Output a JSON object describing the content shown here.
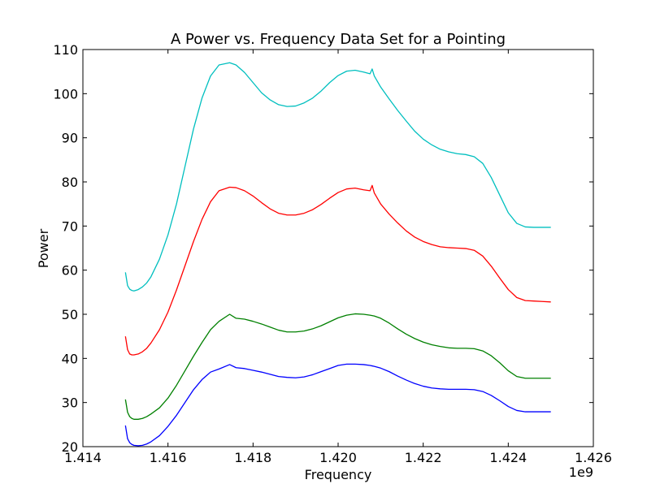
{
  "chart_data": {
    "type": "line",
    "title": "A Power vs. Frequency Data Set for a Pointing",
    "xlabel": "Frequency",
    "ylabel": "Power",
    "x_offset_label": "1e9",
    "xlim": [
      1.414,
      1.426
    ],
    "ylim": [
      20,
      110
    ],
    "xticks": [
      1.414,
      1.416,
      1.418,
      1.42,
      1.422,
      1.424,
      1.426
    ],
    "xtick_labels": [
      "1.414",
      "1.416",
      "1.418",
      "1.420",
      "1.422",
      "1.424",
      "1.426"
    ],
    "yticks": [
      20,
      30,
      40,
      50,
      60,
      70,
      80,
      90,
      100,
      110
    ],
    "ytick_labels": [
      "20",
      "30",
      "40",
      "50",
      "60",
      "70",
      "80",
      "90",
      "100",
      "110"
    ],
    "grid": false,
    "legend": "none",
    "x": [
      1.415,
      1.41505,
      1.4151,
      1.41515,
      1.4152,
      1.4153,
      1.4154,
      1.4155,
      1.4156,
      1.4158,
      1.416,
      1.4162,
      1.4164,
      1.4166,
      1.4168,
      1.417,
      1.4172,
      1.41745,
      1.4176,
      1.4178,
      1.418,
      1.4182,
      1.4184,
      1.4186,
      1.4188,
      1.419,
      1.4192,
      1.4194,
      1.4196,
      1.4198,
      1.42,
      1.4202,
      1.4204,
      1.4206,
      1.42075,
      1.4208,
      1.42085,
      1.421,
      1.4212,
      1.4214,
      1.4216,
      1.4218,
      1.422,
      1.4222,
      1.4224,
      1.4226,
      1.4228,
      1.423,
      1.4232,
      1.4234,
      1.4236,
      1.4238,
      1.424,
      1.4242,
      1.4244,
      1.4246,
      1.4248,
      1.425
    ],
    "series": [
      {
        "color": "#0000ff",
        "values": [
          24.8,
          21.8,
          20.9,
          20.5,
          20.3,
          20.2,
          20.3,
          20.6,
          21.1,
          22.5,
          24.6,
          27.1,
          30.0,
          32.9,
          35.2,
          36.9,
          37.6,
          38.6,
          37.9,
          37.7,
          37.3,
          36.9,
          36.4,
          35.9,
          35.7,
          35.6,
          35.8,
          36.3,
          37.0,
          37.7,
          38.4,
          38.7,
          38.7,
          38.6,
          38.4,
          38.3,
          38.2,
          37.8,
          37.0,
          36.0,
          35.1,
          34.3,
          33.7,
          33.3,
          33.1,
          33.0,
          33.0,
          33.0,
          32.9,
          32.5,
          31.6,
          30.4,
          29.1,
          28.2,
          27.9,
          27.9,
          27.9,
          27.9
        ]
      },
      {
        "color": "#008000",
        "values": [
          30.7,
          27.8,
          26.8,
          26.4,
          26.2,
          26.2,
          26.4,
          26.8,
          27.4,
          28.8,
          31.0,
          33.9,
          37.2,
          40.5,
          43.6,
          46.5,
          48.4,
          50.0,
          49.1,
          48.9,
          48.4,
          47.8,
          47.1,
          46.4,
          46.0,
          46.0,
          46.2,
          46.7,
          47.4,
          48.3,
          49.2,
          49.8,
          50.1,
          50.0,
          49.8,
          49.7,
          49.6,
          49.1,
          48.0,
          46.7,
          45.5,
          44.5,
          43.7,
          43.1,
          42.7,
          42.4,
          42.3,
          42.3,
          42.2,
          41.7,
          40.6,
          39.0,
          37.2,
          35.9,
          35.5,
          35.5,
          35.5,
          35.5
        ]
      },
      {
        "color": "#ff0000",
        "values": [
          45.0,
          42.0,
          41.0,
          40.8,
          40.8,
          41.0,
          41.5,
          42.3,
          43.5,
          46.5,
          50.5,
          55.5,
          61.0,
          66.5,
          71.5,
          75.5,
          78.0,
          78.8,
          78.7,
          78.0,
          76.8,
          75.3,
          73.9,
          72.9,
          72.5,
          72.5,
          72.9,
          73.7,
          74.9,
          76.3,
          77.6,
          78.4,
          78.6,
          78.2,
          78.0,
          79.2,
          77.5,
          75.0,
          72.7,
          70.7,
          68.9,
          67.5,
          66.5,
          65.8,
          65.3,
          65.1,
          65.0,
          64.9,
          64.5,
          63.2,
          60.9,
          58.2,
          55.6,
          53.8,
          53.1,
          53.0,
          52.9,
          52.8
        ]
      },
      {
        "color": "#00bfbf",
        "values": [
          59.5,
          56.5,
          55.7,
          55.4,
          55.3,
          55.6,
          56.2,
          57.1,
          58.5,
          62.5,
          68.0,
          75.0,
          83.5,
          92.0,
          99.0,
          104.0,
          106.5,
          107.0,
          106.5,
          104.8,
          102.5,
          100.2,
          98.6,
          97.5,
          97.1,
          97.2,
          97.9,
          99.0,
          100.6,
          102.5,
          104.1,
          105.1,
          105.3,
          104.9,
          104.5,
          105.6,
          104.0,
          101.5,
          98.8,
          96.2,
          93.8,
          91.5,
          89.7,
          88.4,
          87.4,
          86.8,
          86.4,
          86.2,
          85.7,
          84.2,
          81.0,
          77.0,
          73.0,
          70.6,
          69.8,
          69.7,
          69.7,
          69.7
        ]
      }
    ]
  }
}
